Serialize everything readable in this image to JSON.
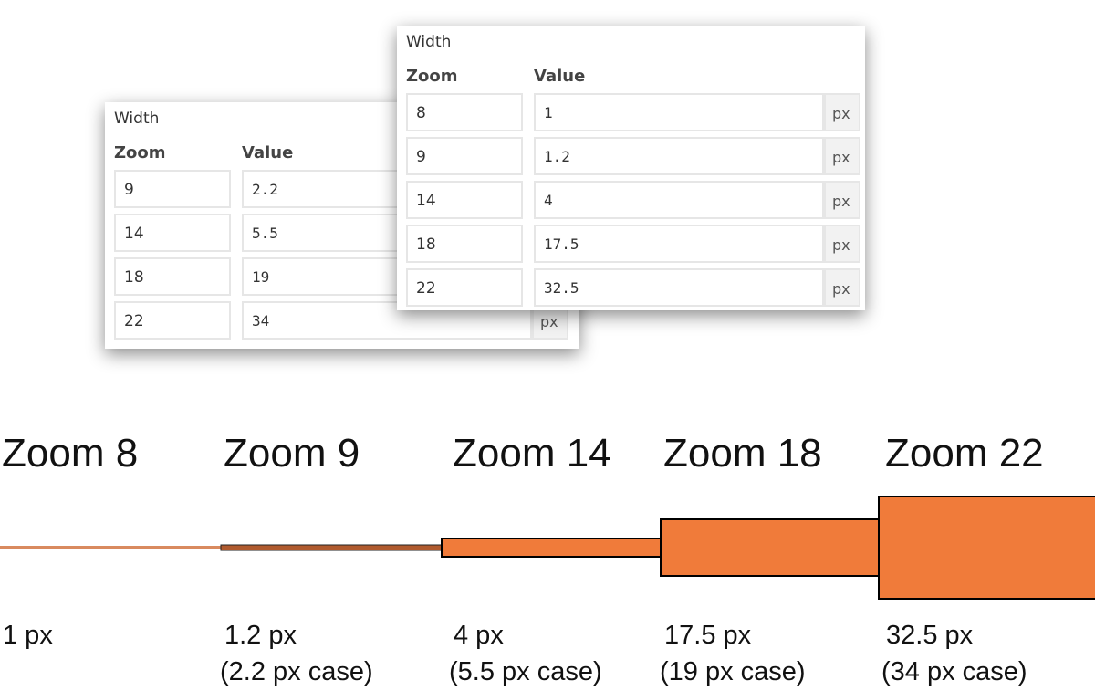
{
  "panels": [
    {
      "title": "Width",
      "columns": [
        "Zoom",
        "Value"
      ],
      "unit": "px",
      "rows": [
        [
          "9",
          "2.2"
        ],
        [
          "14",
          "5.5"
        ],
        [
          "18",
          "19"
        ],
        [
          "22",
          "34"
        ]
      ]
    },
    {
      "title": "Width",
      "columns": [
        "Zoom",
        "Value"
      ],
      "unit": "px",
      "rows": [
        [
          "8",
          "1"
        ],
        [
          "9",
          "1.2"
        ],
        [
          "14",
          "4"
        ],
        [
          "18",
          "17.5"
        ],
        [
          "22",
          "32.5"
        ]
      ]
    }
  ],
  "scale": [
    {
      "label": "Zoom 8",
      "width": "1 px"
    },
    {
      "label": "Zoom 9",
      "width": "1.2 px",
      "note": "(2.2 px case)"
    },
    {
      "label": "Zoom 14",
      "width": "4 px",
      "note": "(5.5 px case)"
    },
    {
      "label": "Zoom 18",
      "width": "17.5 px",
      "note": "(19 px case)"
    },
    {
      "label": "Zoom 22",
      "width": "32.5 px",
      "note": "(34 px case)"
    }
  ]
}
